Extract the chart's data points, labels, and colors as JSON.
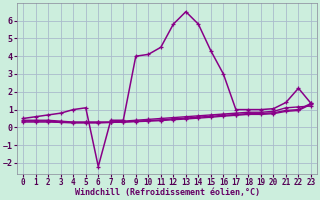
{
  "xlabel": "Windchill (Refroidissement éolien,°C)",
  "background_color": "#cceedd",
  "grid_color": "#aabbcc",
  "line_color": "#880088",
  "xlim": [
    -0.5,
    23.5
  ],
  "ylim": [
    -2.6,
    7.0
  ],
  "yticks": [
    -2,
    -1,
    0,
    1,
    2,
    3,
    4,
    5,
    6
  ],
  "xticks": [
    0,
    1,
    2,
    3,
    4,
    5,
    6,
    7,
    8,
    9,
    10,
    11,
    12,
    13,
    14,
    15,
    16,
    17,
    18,
    19,
    20,
    21,
    22,
    23
  ],
  "series": [
    {
      "x": [
        0,
        1,
        2,
        3,
        4,
        5,
        6,
        7,
        8,
        9,
        10,
        11,
        12,
        13,
        14,
        15,
        16,
        17,
        18,
        19,
        20,
        21,
        22,
        23
      ],
      "y": [
        0.4,
        0.4,
        0.4,
        0.35,
        0.3,
        0.3,
        0.3,
        0.3,
        0.35,
        0.4,
        0.45,
        0.5,
        0.55,
        0.6,
        0.65,
        0.7,
        0.75,
        0.8,
        0.85,
        0.85,
        0.9,
        1.1,
        1.15,
        1.2
      ]
    },
    {
      "x": [
        0,
        1,
        2,
        3,
        4,
        5,
        6,
        7,
        8,
        9,
        10,
        11,
        12,
        13,
        14,
        15,
        16,
        17,
        18,
        19,
        20,
        21,
        22,
        23
      ],
      "y": [
        0.35,
        0.35,
        0.35,
        0.3,
        0.28,
        0.28,
        0.28,
        0.28,
        0.3,
        0.35,
        0.38,
        0.42,
        0.48,
        0.52,
        0.58,
        0.62,
        0.68,
        0.72,
        0.78,
        0.78,
        0.82,
        0.95,
        1.0,
        1.35
      ]
    },
    {
      "x": [
        0,
        1,
        2,
        3,
        4,
        5,
        6,
        7,
        8,
        9,
        10,
        11,
        12,
        13,
        14,
        15,
        16,
        17,
        18,
        19,
        20,
        21,
        22,
        23
      ],
      "y": [
        0.3,
        0.3,
        0.3,
        0.28,
        0.25,
        0.25,
        0.25,
        0.28,
        0.3,
        0.32,
        0.35,
        0.38,
        0.43,
        0.47,
        0.52,
        0.57,
        0.63,
        0.68,
        0.73,
        0.73,
        0.77,
        0.9,
        0.95,
        1.3
      ]
    },
    {
      "x": [
        0,
        1,
        2,
        3,
        4,
        5,
        6,
        7,
        8,
        9,
        10,
        11,
        12,
        13,
        14,
        15,
        16,
        17,
        18,
        19,
        20,
        21,
        22,
        23
      ],
      "y": [
        0.5,
        0.6,
        0.7,
        0.8,
        1.0,
        1.1,
        -2.2,
        0.4,
        0.4,
        4.0,
        4.1,
        4.5,
        5.8,
        6.5,
        5.8,
        4.3,
        3.0,
        1.0,
        1.0,
        1.0,
        1.05,
        1.4,
        2.2,
        1.35
      ]
    }
  ]
}
